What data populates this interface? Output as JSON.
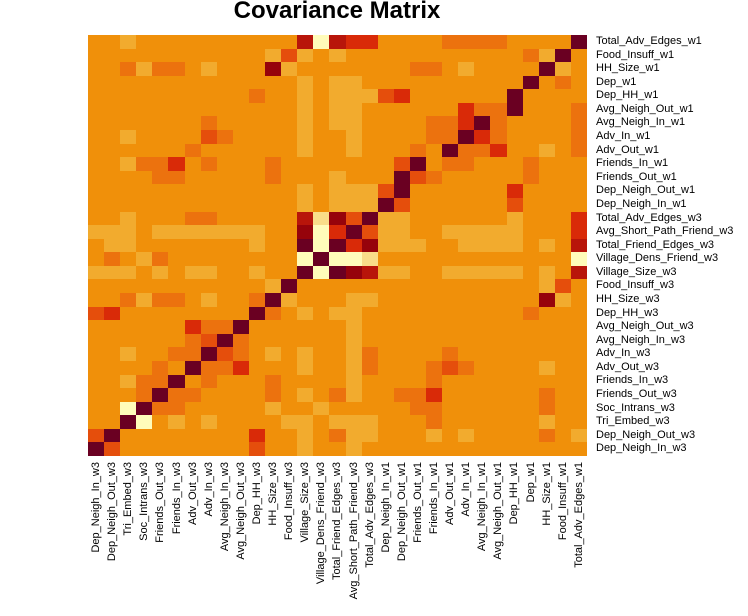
{
  "chart_data": {
    "type": "heatmap",
    "title": "Covariance Matrix",
    "xlabel": "",
    "ylabel": "",
    "colormap": "YlOrRd reversed (darker = higher covariance)",
    "legend": "none",
    "x_labels": [
      "Dep_Neigh_In_w3",
      "Dep_Neigh_Out_w3",
      "Tri_Embed_w3",
      "Soc_Intrans_w3",
      "Friends_Out_w3",
      "Friends_In_w3",
      "Adv_Out_w3",
      "Adv_In_w3",
      "Avg_Neigh_In_w3",
      "Avg_Neigh_Out_w3",
      "Dep_HH_w3",
      "HH_Size_w3",
      "Food_Insuff_w3",
      "Village_Size_w3",
      "Village_Dens_Friend_w3",
      "Total_Friend_Edges_w3",
      "Avg_Short_Path_Friend_w3",
      "Total_Adv_Edges_w3",
      "Dep_Neigh_In_w1",
      "Dep_Neigh_Out_w1",
      "Friends_Out_w1",
      "Friends_In_w1",
      "Adv_Out_w1",
      "Adv_In_w1",
      "Avg_Neigh_In_w1",
      "Avg_Neigh_Out_w1",
      "Dep_HH_w1",
      "Dep_w1",
      "HH_Size_w1",
      "Food_Insuff_w1",
      "Total_Adv_Edges_w1"
    ],
    "y_labels": [
      "Total_Adv_Edges_w1",
      "Food_Insuff_w1",
      "HH_Size_w1",
      "Dep_w1",
      "Dep_HH_w1",
      "Avg_Neigh_Out_w1",
      "Avg_Neigh_In_w1",
      "Adv_In_w1",
      "Adv_Out_w1",
      "Friends_In_w1",
      "Friends_Out_w1",
      "Dep_Neigh_Out_w1",
      "Dep_Neigh_In_w1",
      "Total_Adv_Edges_w3",
      "Avg_Short_Path_Friend_w3",
      "Total_Friend_Edges_w3",
      "Village_Dens_Friend_w3",
      "Village_Size_w3",
      "Food_Insuff_w3",
      "HH_Size_w3",
      "Dep_HH_w3",
      "Avg_Neigh_Out_w3",
      "Avg_Neigh_In_w3",
      "Adv_In_w3",
      "Adv_Out_w3",
      "Friends_In_w3",
      "Friends_Out_w3",
      "Soc_Intrans_w3",
      "Tri_Embed_w3",
      "Dep_Neigh_Out_w3",
      "Dep_Neigh_In_w3"
    ],
    "value_scale_note": "Ordinal color levels estimated from pixels: -1 very low (pale yellow), -0.5 low (light yellow), 0 low-light orange, 1 base orange, 2 dark orange, 3 red-orange, 4 red, 5 dark red, 6 deep red, 7 maroon (max, diagonal)",
    "levels": {
      "8": "#FFFCBA",
      "9": "#F9DD89",
      "1": "#F2AB2E",
      "0": "#F0900A",
      "2": "#EC720E",
      "3": "#E54E0C",
      "4": "#D92A08",
      "5": "#B8150A",
      "6": "#96030B",
      "7": "#6A0022"
    },
    "matrix": [
      [
        0,
        0,
        1,
        0,
        0,
        0,
        0,
        0,
        0,
        0,
        0,
        0,
        0,
        5,
        8,
        5,
        4,
        4,
        0,
        0,
        0,
        0,
        2,
        2,
        2,
        2,
        0,
        0,
        0,
        0,
        7
      ],
      [
        0,
        0,
        0,
        0,
        0,
        0,
        0,
        0,
        0,
        0,
        0,
        1,
        3,
        1,
        0,
        1,
        0,
        0,
        0,
        0,
        0,
        0,
        0,
        0,
        0,
        0,
        0,
        2,
        1,
        7,
        0
      ],
      [
        0,
        0,
        2,
        1,
        2,
        2,
        0,
        1,
        0,
        0,
        0,
        6,
        1,
        0,
        0,
        0,
        0,
        0,
        0,
        0,
        2,
        2,
        0,
        1,
        0,
        0,
        0,
        0,
        7,
        1,
        0
      ],
      [
        0,
        0,
        0,
        0,
        0,
        0,
        0,
        0,
        0,
        0,
        0,
        0,
        0,
        1,
        0,
        1,
        1,
        0,
        0,
        0,
        0,
        0,
        0,
        0,
        0,
        0,
        0,
        7,
        0,
        2,
        0
      ],
      [
        0,
        0,
        0,
        0,
        0,
        0,
        0,
        0,
        0,
        0,
        2,
        0,
        0,
        1,
        0,
        1,
        1,
        1,
        3,
        4,
        0,
        0,
        0,
        0,
        0,
        0,
        7,
        0,
        0,
        0,
        0
      ],
      [
        0,
        0,
        0,
        0,
        0,
        0,
        0,
        0,
        0,
        0,
        0,
        0,
        0,
        1,
        0,
        1,
        1,
        0,
        0,
        0,
        0,
        0,
        0,
        4,
        2,
        2,
        7,
        0,
        0,
        0,
        2
      ],
      [
        0,
        0,
        0,
        0,
        0,
        0,
        0,
        2,
        0,
        0,
        0,
        0,
        0,
        1,
        0,
        1,
        1,
        0,
        0,
        0,
        0,
        2,
        2,
        4,
        7,
        2,
        0,
        0,
        0,
        0,
        2
      ],
      [
        0,
        0,
        1,
        0,
        0,
        0,
        0,
        3,
        2,
        0,
        0,
        0,
        0,
        1,
        0,
        0,
        1,
        0,
        0,
        0,
        0,
        2,
        2,
        7,
        4,
        2,
        0,
        0,
        0,
        0,
        2
      ],
      [
        0,
        0,
        0,
        0,
        0,
        0,
        2,
        0,
        0,
        0,
        0,
        0,
        0,
        1,
        0,
        0,
        1,
        0,
        0,
        0,
        2,
        0,
        7,
        2,
        2,
        4,
        0,
        0,
        1,
        0,
        2
      ],
      [
        0,
        0,
        1,
        2,
        2,
        4,
        0,
        2,
        0,
        0,
        0,
        2,
        0,
        0,
        0,
        0,
        0,
        0,
        0,
        3,
        7,
        0,
        2,
        2,
        0,
        0,
        0,
        2,
        0,
        0,
        0
      ],
      [
        0,
        0,
        0,
        0,
        2,
        2,
        0,
        0,
        0,
        0,
        0,
        2,
        0,
        0,
        0,
        1,
        0,
        0,
        0,
        7,
        3,
        2,
        0,
        0,
        0,
        0,
        0,
        2,
        0,
        0,
        0
      ],
      [
        0,
        0,
        0,
        0,
        0,
        0,
        0,
        0,
        0,
        0,
        0,
        0,
        0,
        1,
        0,
        1,
        1,
        1,
        3,
        7,
        0,
        0,
        0,
        0,
        0,
        0,
        4,
        0,
        0,
        0,
        0
      ],
      [
        0,
        0,
        0,
        0,
        0,
        0,
        0,
        0,
        0,
        0,
        0,
        0,
        0,
        1,
        0,
        1,
        1,
        1,
        7,
        3,
        0,
        0,
        0,
        0,
        0,
        0,
        3,
        0,
        0,
        0,
        0
      ],
      [
        0,
        0,
        1,
        0,
        0,
        0,
        2,
        2,
        0,
        0,
        0,
        0,
        0,
        5,
        9,
        6,
        3,
        7,
        1,
        1,
        0,
        0,
        0,
        0,
        0,
        0,
        1,
        0,
        0,
        0,
        4
      ],
      [
        1,
        1,
        1,
        0,
        1,
        1,
        1,
        1,
        1,
        1,
        1,
        0,
        0,
        6,
        8,
        4,
        7,
        3,
        1,
        1,
        0,
        0,
        1,
        1,
        1,
        1,
        1,
        0,
        0,
        0,
        4
      ],
      [
        0,
        1,
        1,
        0,
        0,
        0,
        0,
        0,
        0,
        0,
        1,
        0,
        0,
        7,
        8,
        7,
        4,
        6,
        1,
        1,
        1,
        0,
        0,
        1,
        1,
        1,
        1,
        0,
        1,
        0,
        5
      ],
      [
        0,
        2,
        0,
        1,
        2,
        0,
        0,
        0,
        0,
        0,
        0,
        0,
        0,
        8,
        7,
        8,
        8,
        9,
        0,
        0,
        0,
        0,
        0,
        0,
        0,
        0,
        0,
        0,
        0,
        0,
        8
      ],
      [
        1,
        1,
        1,
        0,
        1,
        0,
        1,
        1,
        0,
        0,
        1,
        0,
        0,
        7,
        8,
        7,
        6,
        5,
        1,
        1,
        0,
        0,
        1,
        1,
        1,
        1,
        1,
        0,
        1,
        0,
        5
      ],
      [
        0,
        0,
        0,
        0,
        0,
        0,
        0,
        0,
        0,
        0,
        0,
        1,
        7,
        0,
        0,
        0,
        0,
        0,
        0,
        0,
        0,
        0,
        0,
        0,
        0,
        0,
        0,
        0,
        1,
        3,
        0
      ],
      [
        0,
        0,
        2,
        1,
        2,
        2,
        0,
        1,
        0,
        0,
        2,
        7,
        1,
        0,
        0,
        0,
        1,
        1,
        0,
        0,
        0,
        0,
        0,
        0,
        0,
        0,
        0,
        0,
        6,
        1,
        0
      ],
      [
        3,
        4,
        0,
        0,
        0,
        0,
        0,
        0,
        0,
        0,
        7,
        2,
        0,
        1,
        0,
        1,
        1,
        0,
        0,
        0,
        0,
        0,
        0,
        0,
        0,
        0,
        0,
        2,
        0,
        0,
        0
      ],
      [
        0,
        0,
        0,
        0,
        0,
        0,
        4,
        2,
        2,
        7,
        0,
        0,
        0,
        0,
        0,
        0,
        1,
        0,
        0,
        0,
        0,
        0,
        0,
        0,
        0,
        0,
        0,
        0,
        0,
        0,
        0
      ],
      [
        0,
        0,
        0,
        0,
        0,
        0,
        2,
        3,
        7,
        2,
        0,
        0,
        0,
        0,
        0,
        0,
        1,
        0,
        0,
        0,
        0,
        0,
        0,
        0,
        0,
        0,
        0,
        0,
        0,
        0,
        0
      ],
      [
        0,
        0,
        1,
        0,
        0,
        2,
        2,
        7,
        3,
        2,
        0,
        1,
        0,
        1,
        0,
        0,
        1,
        2,
        0,
        0,
        0,
        0,
        2,
        0,
        0,
        0,
        0,
        0,
        0,
        0,
        0
      ],
      [
        0,
        0,
        0,
        0,
        2,
        0,
        7,
        2,
        2,
        4,
        0,
        0,
        0,
        1,
        0,
        0,
        1,
        2,
        0,
        0,
        0,
        2,
        3,
        2,
        0,
        0,
        0,
        0,
        1,
        0,
        0
      ],
      [
        0,
        0,
        1,
        2,
        2,
        7,
        0,
        2,
        0,
        0,
        0,
        2,
        0,
        0,
        0,
        0,
        1,
        0,
        0,
        0,
        0,
        2,
        0,
        0,
        0,
        0,
        0,
        0,
        0,
        0,
        0
      ],
      [
        0,
        0,
        0,
        2,
        7,
        2,
        2,
        0,
        0,
        0,
        0,
        2,
        0,
        1,
        0,
        2,
        1,
        0,
        0,
        2,
        2,
        4,
        0,
        0,
        0,
        0,
        0,
        0,
        2,
        0,
        0
      ],
      [
        0,
        0,
        8,
        7,
        2,
        2,
        0,
        0,
        0,
        0,
        0,
        1,
        0,
        0,
        1,
        0,
        0,
        0,
        0,
        0,
        2,
        2,
        0,
        0,
        0,
        0,
        0,
        0,
        2,
        0,
        0
      ],
      [
        0,
        0,
        7,
        8,
        0,
        1,
        0,
        1,
        0,
        0,
        0,
        0,
        1,
        1,
        0,
        1,
        1,
        1,
        0,
        0,
        0,
        2,
        0,
        0,
        0,
        0,
        0,
        0,
        1,
        0,
        0
      ],
      [
        3,
        7,
        0,
        0,
        0,
        0,
        0,
        0,
        0,
        0,
        4,
        0,
        0,
        1,
        0,
        2,
        1,
        1,
        0,
        0,
        0,
        1,
        0,
        1,
        0,
        0,
        0,
        0,
        2,
        0,
        1
      ],
      [
        7,
        3,
        0,
        0,
        0,
        0,
        0,
        0,
        0,
        0,
        3,
        0,
        0,
        1,
        0,
        0,
        1,
        0,
        0,
        0,
        0,
        0,
        0,
        0,
        0,
        0,
        0,
        0,
        0,
        0,
        0
      ]
    ],
    "grid": false,
    "xlim": [
      0,
      31
    ],
    "ylim": [
      0,
      31
    ]
  }
}
